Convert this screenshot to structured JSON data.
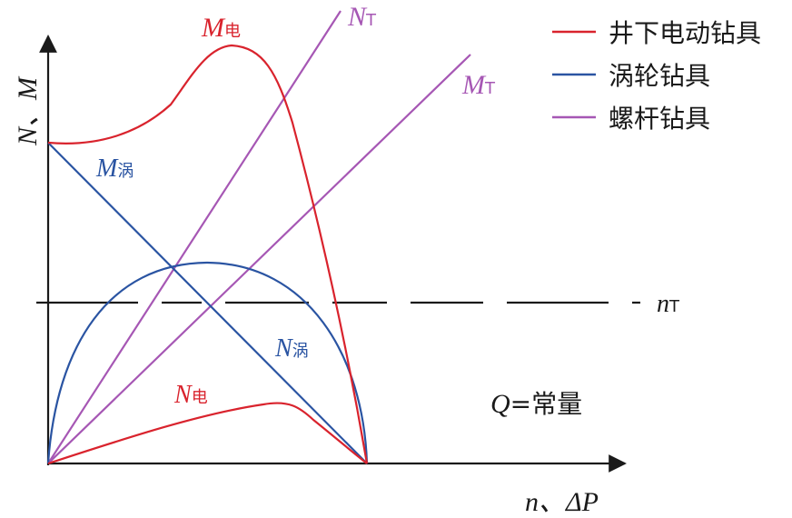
{
  "colors": {
    "electric": "#d9232d",
    "turbine": "#2a54a2",
    "screw": "#a657b4",
    "axis": "#1a1a1a"
  },
  "axes": {
    "y_label": "N、M",
    "x_label_main": "n、",
    "x_label_delta": "ΔP"
  },
  "legend": [
    {
      "label": "井下电动钻具",
      "color_key": "electric"
    },
    {
      "label": "涡轮钻具",
      "color_key": "turbine"
    },
    {
      "label": "螺杆钻具",
      "color_key": "screw"
    }
  ],
  "curve_labels": {
    "m_electric": {
      "main": "M",
      "sub": "电"
    },
    "n_screw": {
      "main": "N",
      "sub": "T"
    },
    "m_screw": {
      "main": "M",
      "sub": "T"
    },
    "m_turbine": {
      "main": "M",
      "sub": "涡"
    },
    "n_turbine": {
      "main": "N",
      "sub": "涡"
    },
    "n_electric": {
      "main": "N",
      "sub": "电"
    },
    "n_threshold": {
      "main": "n",
      "sub": "T"
    }
  },
  "condition": {
    "main": "Q",
    "rest": "=常量"
  }
}
